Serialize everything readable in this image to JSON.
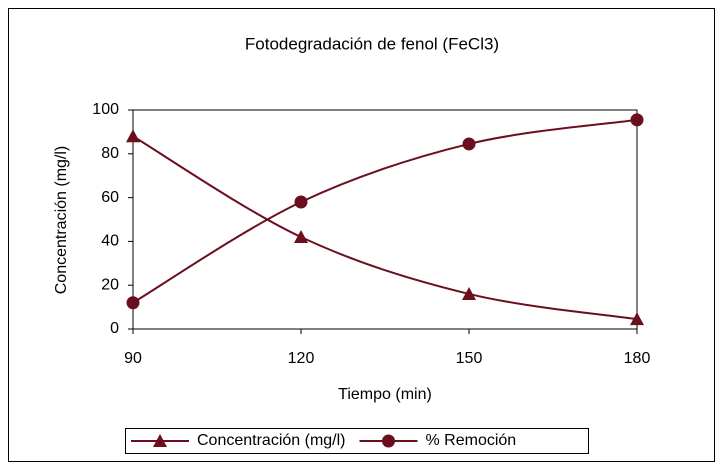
{
  "chart_data": {
    "type": "line",
    "title": "Fotodegradación de fenol (FeCl3)",
    "x_label": "Tiempo (min)",
    "y_label": "Concentración (mg/l)",
    "x": [
      90,
      120,
      150,
      180
    ],
    "xlim": [
      90,
      180
    ],
    "xticks": [
      90,
      120,
      150,
      180
    ],
    "ylim": [
      0,
      100
    ],
    "yticks": [
      0,
      20,
      40,
      60,
      80,
      100
    ],
    "grid": false,
    "legend": "bottom",
    "series": [
      {
        "name": "Concentración (mg/l)",
        "color": "#6b0f1f",
        "marker": "triangle",
        "values": [
          88,
          42,
          16,
          4.5
        ]
      },
      {
        "name": "% Remoción",
        "color": "#6b0f1f",
        "marker": "circle",
        "values": [
          12,
          58,
          84.5,
          95.5
        ]
      }
    ]
  }
}
